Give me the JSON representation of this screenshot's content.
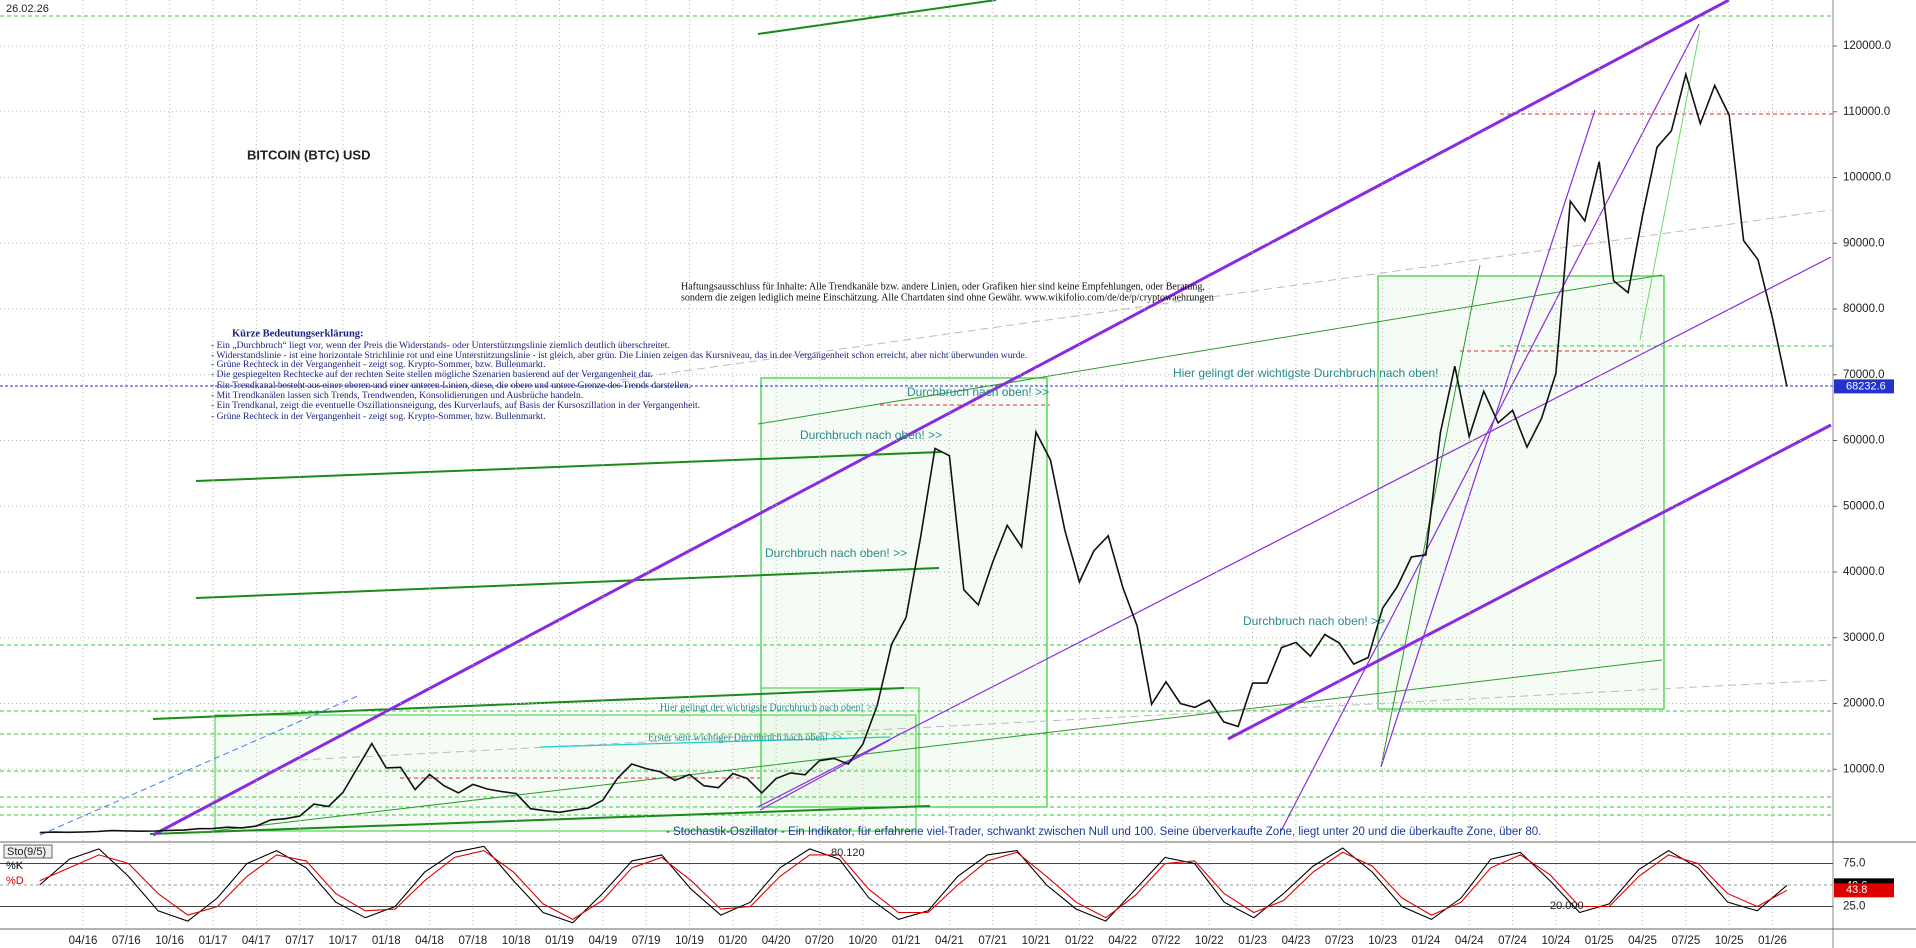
{
  "chart_data": [
    {
      "type": "line",
      "title": "BITCOIN (BTC) USD",
      "x": [
        "01/16",
        "02/16",
        "03/16",
        "04/16",
        "05/16",
        "06/16",
        "07/16",
        "08/16",
        "09/16",
        "10/16",
        "11/16",
        "12/16",
        "01/17",
        "02/17",
        "03/17",
        "04/17",
        "05/17",
        "06/17",
        "07/17",
        "08/17",
        "09/17",
        "10/17",
        "11/17",
        "12/17",
        "01/18",
        "02/18",
        "03/18",
        "04/18",
        "05/18",
        "06/18",
        "07/18",
        "08/18",
        "09/18",
        "10/18",
        "11/18",
        "12/18",
        "01/19",
        "02/19",
        "03/19",
        "04/19",
        "05/19",
        "06/19",
        "07/19",
        "08/19",
        "09/19",
        "10/19",
        "11/19",
        "12/19",
        "01/20",
        "02/20",
        "03/20",
        "04/20",
        "05/20",
        "06/20",
        "07/20",
        "08/20",
        "09/20",
        "10/20",
        "11/20",
        "12/20",
        "01/21",
        "02/21",
        "03/21",
        "04/21",
        "05/21",
        "06/21",
        "07/21",
        "08/21",
        "09/21",
        "10/21",
        "11/21",
        "12/21",
        "01/22",
        "02/22",
        "03/22",
        "04/22",
        "05/22",
        "06/22",
        "07/22",
        "08/22",
        "09/22",
        "10/22",
        "11/22",
        "12/22",
        "01/23",
        "02/23",
        "03/23",
        "04/23",
        "05/23",
        "06/23",
        "07/23",
        "08/23",
        "09/23",
        "10/23",
        "11/23",
        "12/23",
        "01/24",
        "02/24",
        "03/24",
        "04/24",
        "05/24",
        "06/24",
        "07/24",
        "08/24",
        "09/24",
        "10/24",
        "11/24",
        "12/24",
        "01/25",
        "02/25",
        "03/25",
        "04/25",
        "05/25",
        "06/25",
        "07/25",
        "08/25",
        "09/25",
        "10/25",
        "11/25",
        "12/25",
        "01/26",
        "02/26"
      ],
      "series": [
        {
          "name": "BTC USD",
          "color": "#111111",
          "values": [
            370,
            440,
            415,
            450,
            530,
            670,
            625,
            575,
            610,
            700,
            740,
            960,
            970,
            1190,
            1080,
            1350,
            2300,
            2480,
            2880,
            4700,
            4340,
            6470,
            10200,
            13900,
            10200,
            10300,
            6900,
            9200,
            7500,
            6400,
            7700,
            7000,
            6600,
            6300,
            4000,
            3700,
            3450,
            3800,
            4100,
            5300,
            8600,
            10800,
            10100,
            9600,
            8300,
            9200,
            7500,
            7200,
            9350,
            8600,
            6400,
            8600,
            9450,
            9150,
            11300,
            11650,
            10800,
            13800,
            19700,
            29000,
            33100,
            45200,
            58800,
            57700,
            37300,
            35000,
            41500,
            47100,
            43800,
            61300,
            57000,
            46300,
            38500,
            43200,
            45500,
            37700,
            31800,
            19900,
            23300,
            20000,
            19400,
            20500,
            17200,
            16500,
            23100,
            23100,
            28500,
            29300,
            27200,
            30500,
            29200,
            26000,
            27000,
            34500,
            37700,
            42300,
            42600,
            61200,
            71300,
            60600,
            67500,
            62700,
            64600,
            59000,
            63300,
            70200,
            96400,
            93400,
            102400,
            84300,
            82500,
            94200,
            104600,
            107100,
            115700,
            108200,
            114000,
            109500,
            90400,
            87500,
            78600,
            68232.6
          ]
        }
      ],
      "xticks": [
        "04/16",
        "07/16",
        "10/16",
        "01/17",
        "04/17",
        "07/17",
        "10/17",
        "01/18",
        "04/18",
        "07/18",
        "10/18",
        "01/19",
        "04/19",
        "07/19",
        "10/19",
        "01/20",
        "04/20",
        "07/20",
        "10/20",
        "01/21",
        "04/21",
        "07/21",
        "10/21",
        "01/22",
        "04/22",
        "07/22",
        "10/22",
        "01/23",
        "04/23",
        "07/23",
        "10/23",
        "01/24",
        "04/24",
        "07/24",
        "10/24",
        "01/25",
        "04/25",
        "07/25",
        "10/25",
        "01/26"
      ],
      "ylim": [
        0,
        127000
      ],
      "yticks": [
        {
          "value": 10000,
          "label": "10000.0"
        },
        {
          "value": 20000,
          "label": "20000.0"
        },
        {
          "value": 30000,
          "label": "30000.0"
        },
        {
          "value": 40000,
          "label": "40000.0"
        },
        {
          "value": 50000,
          "label": "50000.0"
        },
        {
          "value": 60000,
          "label": "60000.0"
        },
        {
          "value": 70000,
          "label": "70000.0"
        },
        {
          "value": 80000,
          "label": "80000.0"
        },
        {
          "value": 90000,
          "label": "90000.0"
        },
        {
          "value": 100000,
          "label": "100000.0"
        },
        {
          "value": 110000,
          "label": "110000.0"
        },
        {
          "value": 120000,
          "label": "120000.0"
        }
      ],
      "grid": true,
      "annotations": [
        "26.02.26",
        "BITCOIN (BTC) USD",
        "Haftungsausschluss für Inhalte: Alle Trendkanäle bzw. andere Linien, oder Grafiken hier sind keine Empfehlungen, oder Beratung,",
        "sondern die zeigen lediglich meine  Einschätzung. Alle Chartdaten sind ohne Gewähr.  www.wikifolio.com/de/de/p/cryptowaehrungen",
        "Kürze Bedeutungserklärung:",
        "- Ein „Durchbruch“ liegt vor, wenn der Preis die Widerstands- oder Unterstützungslinie ziemlich deutlich überschreitet.",
        "- Widerstandslinie - ist eine horizontale Strichlinie rot und eine Unterstützungslinie - ist gleich, aber grün. Die Linien zeigen das Kursniveau, das in der Vergangenheit schon erreicht, aber nicht überwunden wurde.",
        "- Grüne Rechteck in der Vergangenheit - zeigt sog. Krypto-Sommer, bzw. Bullenmarkt.",
        "- Die gespiegelten Rechtecke auf der rechten Seite stellen mögliche Szenarien basierend auf der Vergangenheit dar.",
        "- Ein Trendkanal besteht aus einer oberen und einer unteren Linien, diese, die obere und untere Grenze des Trends darstellen.",
        "- Mit Trendkanälen lassen sich Trends, Trendwenden, Konsolidierungen und Ausbrüche handeln.",
        "- Ein Trendkanal, zeigt die eventuelle Oszillationsneigung, des Kurverlaufs, auf Basis der Kursoszillation in der Vergangenheit.",
        "- Grüne Rechteck in der Vergangenheit - zeigt sog. Krypto-Sommer, bzw. Bullenmarkt.",
        "Hier gelingt der wichtigste Durchbruch nach oben!",
        "Durchbruch nach oben! >>",
        "Durchbruch nach oben! >>",
        "Durchbruch nach oben! >>",
        "Durchbruch nach oben! >>",
        "Hier gelingt der wichtigste Durchbruch nach oben! >>",
        "Erster sehr wichtiger Durchbruch nach oben! >>",
        "- Stochastik-Oszillator - Ein Indikator, für erfahrene viel-Trader, schwankt zwischen Null und 100. Seine überverkaufte Zone, liegt unter 20 und die überkaufte Zone, über 80."
      ]
    },
    {
      "type": "line",
      "title": "Sto(9/5)",
      "series": [
        {
          "name": "%K",
          "color": "#000000",
          "values": [
            50,
            80,
            92,
            60,
            20,
            8,
            35,
            75,
            90,
            70,
            30,
            12,
            25,
            65,
            88,
            95,
            55,
            18,
            6,
            40,
            78,
            85,
            45,
            15,
            30,
            70,
            92,
            80,
            35,
            10,
            20,
            60,
            85,
            90,
            50,
            22,
            8,
            45,
            82,
            75,
            30,
            12,
            40,
            72,
            93,
            65,
            25,
            10,
            35,
            80,
            88,
            55,
            18,
            28,
            68,
            90,
            70,
            30,
            20,
            49.6
          ]
        },
        {
          "name": "%D",
          "color": "#e00000",
          "values": [
            55,
            70,
            85,
            75,
            40,
            15,
            25,
            60,
            85,
            78,
            40,
            20,
            22,
            55,
            82,
            90,
            65,
            28,
            10,
            32,
            70,
            82,
            55,
            22,
            25,
            60,
            85,
            85,
            45,
            18,
            18,
            50,
            78,
            88,
            60,
            30,
            12,
            38,
            75,
            78,
            40,
            18,
            32,
            65,
            88,
            72,
            35,
            15,
            30,
            70,
            85,
            62,
            25,
            25,
            60,
            85,
            75,
            40,
            25,
            43.8
          ]
        }
      ],
      "ylim": [
        0,
        100
      ],
      "yticks": [
        {
          "value": 25,
          "label": "25.0"
        },
        {
          "value": 50,
          "label": "50.0"
        },
        {
          "value": 75,
          "label": "75.0"
        }
      ],
      "annotations": [
        "80.120",
        "20.000"
      ]
    }
  ]
}
